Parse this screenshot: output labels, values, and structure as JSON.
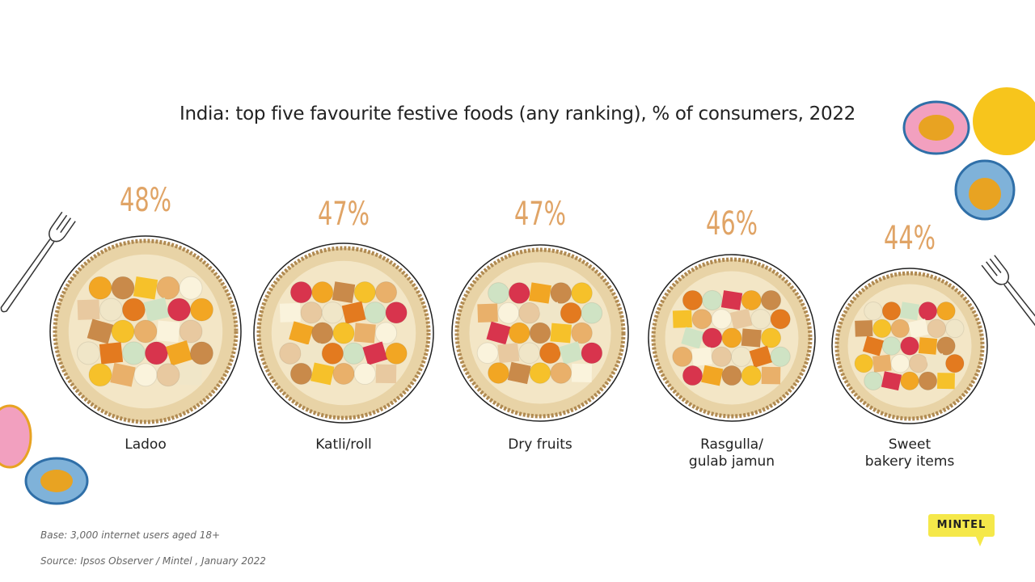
{
  "chart_data": {
    "type": "bar",
    "title": "India: top five favourite festive foods (any ranking), % of consumers, 2022",
    "categories": [
      "Ladoo",
      "Katli/roll",
      "Dry fruits",
      "Rasgulla/\ngulab jamun",
      "Sweet\nbakery items"
    ],
    "values": [
      48,
      47,
      47,
      46,
      44
    ],
    "value_labels": [
      "48%",
      "47%",
      "47%",
      "46%",
      "44%"
    ],
    "unit": "%",
    "value_color": "#e0a466"
  },
  "footer": {
    "base": "Base: 3,000 internet users aged 18+",
    "source": "Source: Ipsos Observer / Mintel , January 2022"
  },
  "logo": {
    "text": "MINTEL",
    "color": "#f5e84a"
  }
}
